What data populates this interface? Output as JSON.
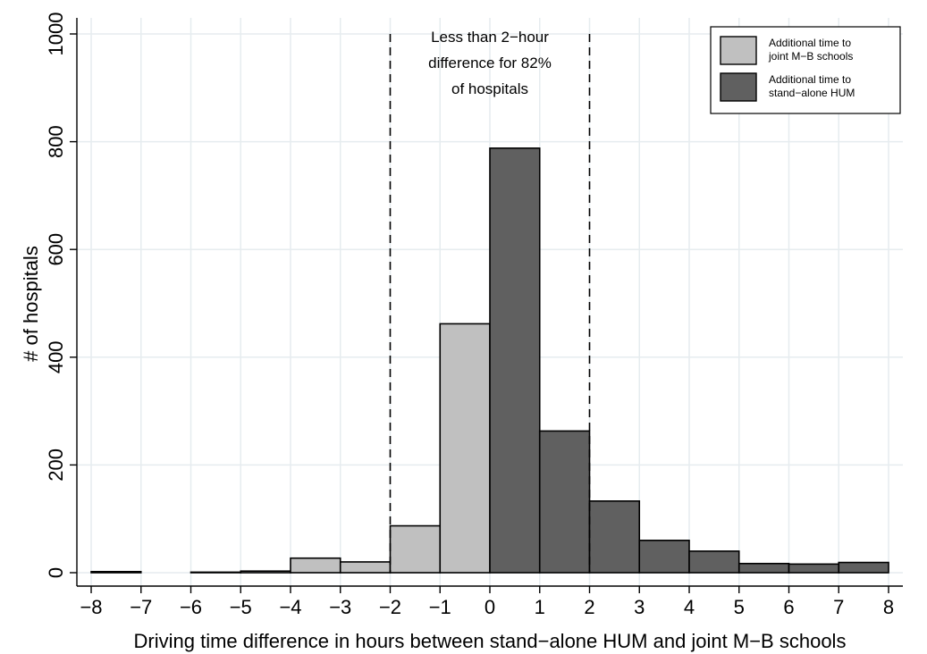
{
  "chart_data": {
    "type": "bar",
    "bin_width": 1,
    "bins": [
      {
        "start": -8,
        "value": 2,
        "group": "joint"
      },
      {
        "start": -6,
        "value": 1,
        "group": "joint"
      },
      {
        "start": -5,
        "value": 3,
        "group": "joint"
      },
      {
        "start": -4,
        "value": 27,
        "group": "joint"
      },
      {
        "start": -3,
        "value": 20,
        "group": "joint"
      },
      {
        "start": -2,
        "value": 87,
        "group": "joint"
      },
      {
        "start": -1,
        "value": 462,
        "group": "joint"
      },
      {
        "start": 0,
        "value": 788,
        "group": "standalone"
      },
      {
        "start": 1,
        "value": 263,
        "group": "standalone"
      },
      {
        "start": 2,
        "value": 133,
        "group": "standalone"
      },
      {
        "start": 3,
        "value": 60,
        "group": "standalone"
      },
      {
        "start": 4,
        "value": 40,
        "group": "standalone"
      },
      {
        "start": 5,
        "value": 17,
        "group": "standalone"
      },
      {
        "start": 6,
        "value": 16,
        "group": "standalone"
      },
      {
        "start": 7,
        "value": 19,
        "group": "standalone"
      }
    ],
    "xlabel": "Driving time difference in hours between stand−alone HUM and joint M−B schools",
    "ylabel": "# of hospitals",
    "xlim": [
      -8,
      8
    ],
    "ylim": [
      0,
      1000
    ],
    "xticks": [
      -8,
      -7,
      -6,
      -5,
      -4,
      -3,
      -2,
      -1,
      0,
      1,
      2,
      3,
      4,
      5,
      6,
      7,
      8
    ],
    "xtick_labels": [
      "−8",
      "−7",
      "−6",
      "−5",
      "−4",
      "−3",
      "−2",
      "−1",
      "0",
      "1",
      "2",
      "3",
      "4",
      "5",
      "6",
      "7",
      "8"
    ],
    "yticks": [
      0,
      200,
      400,
      600,
      800,
      1000
    ],
    "ytick_labels": [
      "0",
      "200",
      "400",
      "600",
      "800",
      "1000"
    ],
    "grid": true,
    "reference_lines": [
      -2,
      2
    ],
    "annotation": [
      "Less than 2−hour",
      "difference for 82%",
      "of hospitals"
    ],
    "legend": {
      "position": "top-right",
      "entries": [
        {
          "key": "joint",
          "lines": [
            "Additional time to",
            "joint M−B schools"
          ],
          "color": "#c0c0c0"
        },
        {
          "key": "standalone",
          "lines": [
            "Additional time to",
            "stand−alone HUM"
          ],
          "color": "#606060"
        }
      ]
    },
    "colors": {
      "joint": "#c0c0c0",
      "standalone": "#606060",
      "grid": "#e6ecef",
      "edge": "#000000"
    }
  }
}
